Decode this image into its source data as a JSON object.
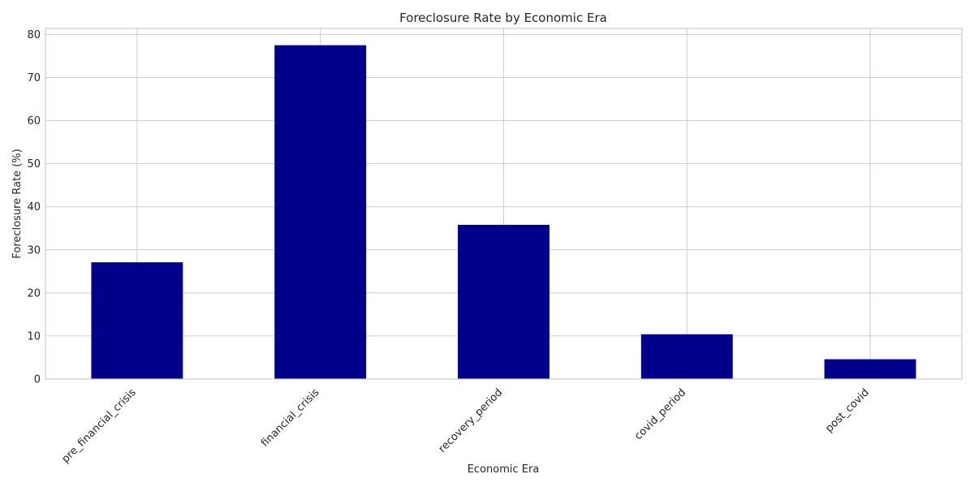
{
  "chart_data": {
    "type": "bar",
    "title": "Foreclosure Rate by Economic Era",
    "xlabel": "Economic Era",
    "ylabel": "Foreclosure Rate (%)",
    "categories": [
      "pre_financial_crisis",
      "financial_crisis",
      "recovery_period",
      "covid_period",
      "post_covid"
    ],
    "values": [
      27.1,
      77.5,
      35.8,
      10.4,
      4.6
    ],
    "ylim": [
      0,
      81.4
    ],
    "yticks": [
      "0",
      "10",
      "20",
      "30",
      "40",
      "50",
      "60",
      "70",
      "80"
    ],
    "ytick_values": [
      0,
      10,
      20,
      30,
      40,
      50,
      60,
      70,
      80
    ],
    "grid": true,
    "legend": "none",
    "bar_color": "#00008b",
    "grid_color": "#cccccc",
    "text_color": "#262626"
  }
}
